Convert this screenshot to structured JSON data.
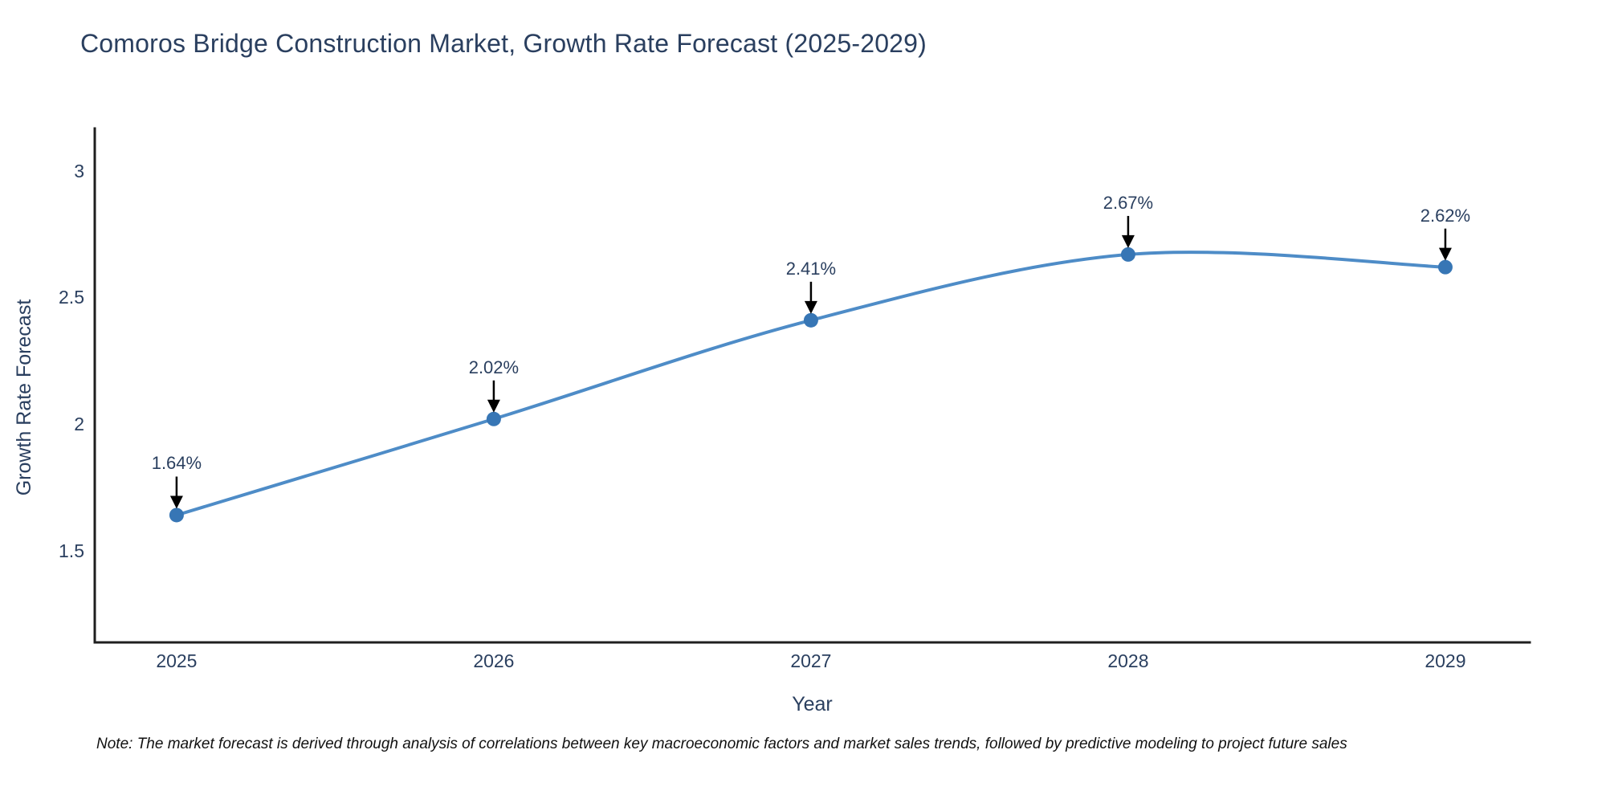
{
  "header": {
    "title": "Comoros Bridge Construction Market, Growth Rate Forecast (2025-2029)"
  },
  "chart_data": {
    "type": "line",
    "curve": "spline",
    "x": [
      2025,
      2026,
      2027,
      2028,
      2029
    ],
    "values": [
      1.64,
      2.02,
      2.41,
      2.67,
      2.62
    ],
    "point_labels": [
      "1.64%",
      "2.02%",
      "2.41%",
      "2.67%",
      "2.62%"
    ],
    "x_tick_labels": [
      "2025",
      "2026",
      "2027",
      "2028",
      "2029"
    ],
    "y_tick_values": [
      3,
      2.5,
      2,
      1.5
    ],
    "y_tick_labels": [
      "3",
      "2.5",
      "2",
      "1.5"
    ],
    "xlim": [
      2024.742,
      2029.266
    ],
    "ylim": [
      1.137,
      3.168
    ],
    "title": "Comoros Bridge Construction Market, Growth Rate Forecast (2025-2029)",
    "xlabel": "Year",
    "ylabel": "Growth Rate Forecast",
    "grid": false,
    "legend": "none",
    "annotations": "black arrows pointing down to each marker",
    "line_color": "#4e8cc7",
    "marker_color": "#3776b5",
    "axis_color": "#1f1f1f",
    "text_color": "#2a3f5f",
    "note_color": "#111111",
    "background_color": "#ffffff"
  },
  "footer": {
    "note": "Note: The market forecast is derived through analysis of correlations between key macroeconomic factors and market sales trends, followed by predictive modeling to project future sales"
  }
}
